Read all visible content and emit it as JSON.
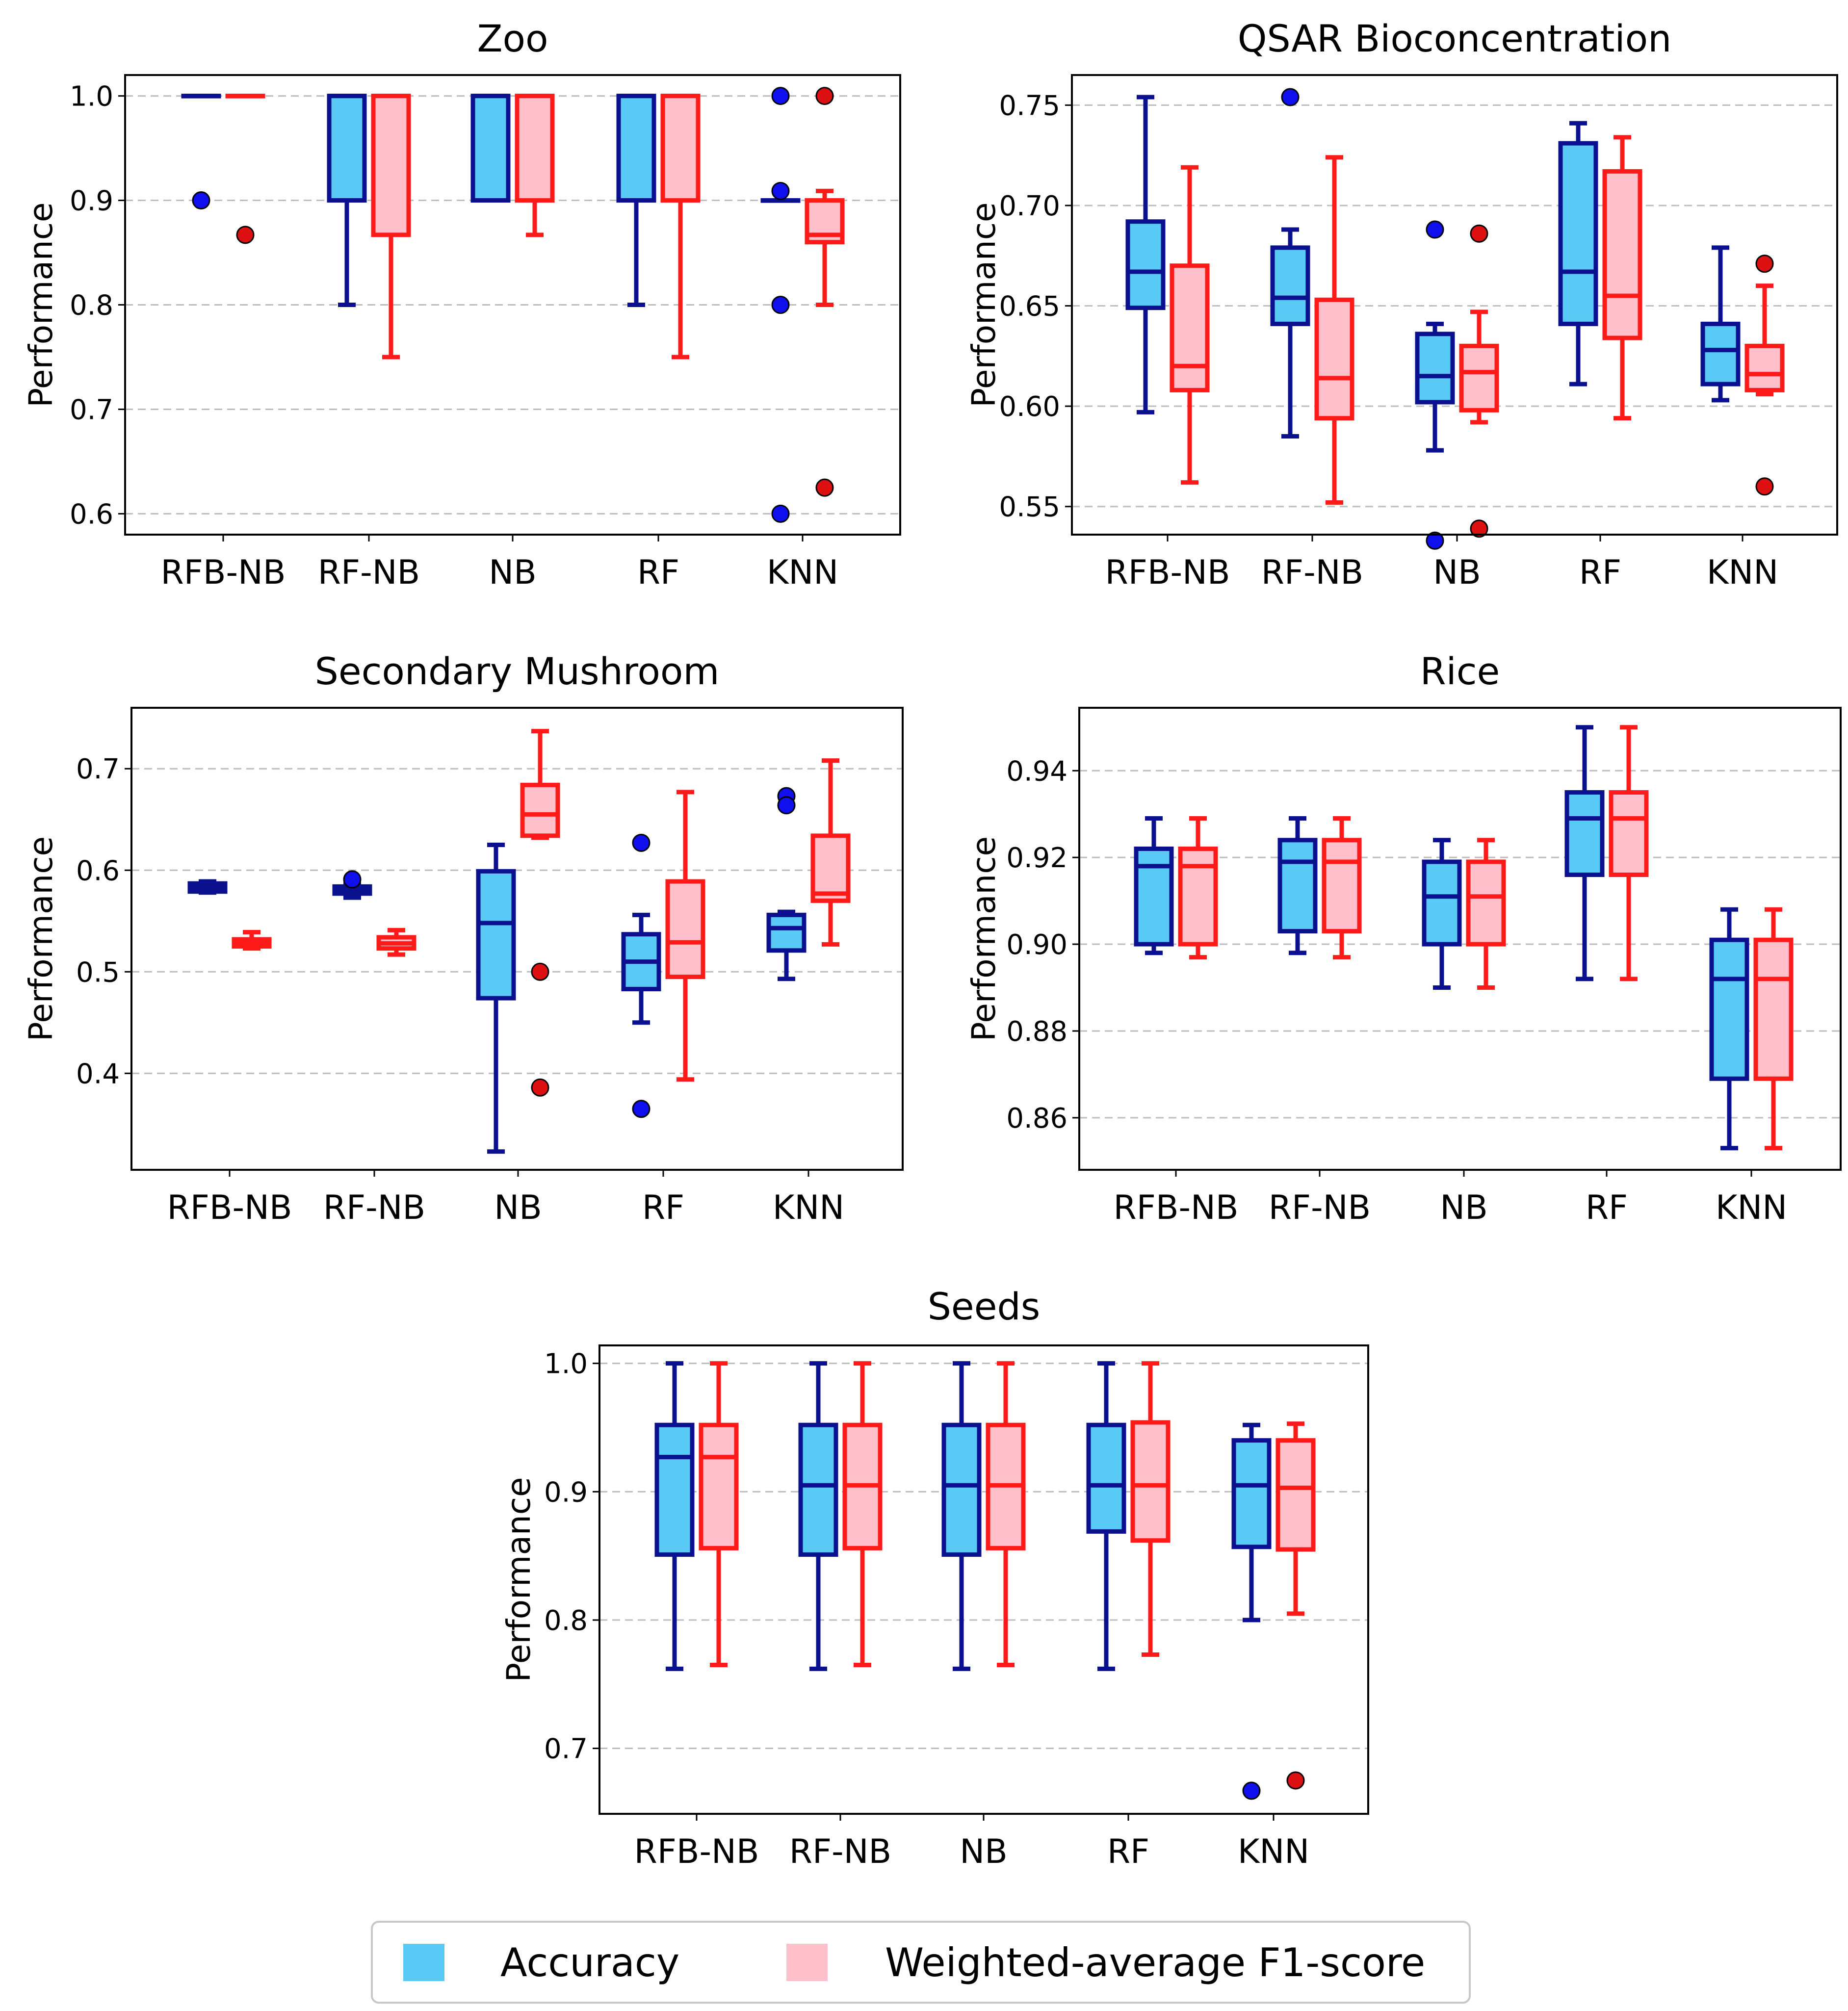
{
  "colors": {
    "acc_fill": "#59C9F5",
    "acc_line": "#0B108F",
    "acc_flier": "#1010EE",
    "f1_fill": "#FFC0CC",
    "f1_line": "#FF1A1A",
    "f1_flier": "#DD1111",
    "grid": "#BDBDBD"
  },
  "legend": {
    "accuracy_label": "Accuracy",
    "f1_label": "Weighted-average F1-score"
  },
  "chart_data": [
    {
      "type": "box",
      "title": "Zoo",
      "ylabel": "Performance",
      "ylim": [
        0.58,
        1.02
      ],
      "yticks": [
        0.6,
        0.7,
        0.8,
        0.9,
        1.0
      ],
      "ytick_labels": [
        "0.6",
        "0.7",
        "0.8",
        "0.9",
        "1.0"
      ],
      "categories": [
        "RFB-NB",
        "RF-NB",
        "NB",
        "RF",
        "KNN"
      ],
      "series": [
        {
          "name": "Accuracy",
          "boxes": [
            {
              "whislo": 1.0,
              "q1": 1.0,
              "med": 1.0,
              "q3": 1.0,
              "whishi": 1.0,
              "fliers": [
                0.9
              ]
            },
            {
              "whislo": 0.8,
              "q1": 0.9,
              "med": 1.0,
              "q3": 1.0,
              "whishi": 1.0,
              "fliers": []
            },
            {
              "whislo": 0.9,
              "q1": 0.9,
              "med": 1.0,
              "q3": 1.0,
              "whishi": 1.0,
              "fliers": []
            },
            {
              "whislo": 0.8,
              "q1": 0.9,
              "med": 1.0,
              "q3": 1.0,
              "whishi": 1.0,
              "fliers": []
            },
            {
              "whislo": 0.9,
              "q1": 0.9,
              "med": 0.9,
              "q3": 0.9,
              "whishi": 0.9,
              "fliers": [
                1.0,
                0.909,
                0.8,
                0.6
              ]
            }
          ]
        },
        {
          "name": "Weighted-average F1-score",
          "boxes": [
            {
              "whislo": 1.0,
              "q1": 1.0,
              "med": 1.0,
              "q3": 1.0,
              "whishi": 1.0,
              "fliers": [
                0.867
              ]
            },
            {
              "whislo": 0.75,
              "q1": 0.867,
              "med": 1.0,
              "q3": 1.0,
              "whishi": 1.0,
              "fliers": []
            },
            {
              "whislo": 0.867,
              "q1": 0.9,
              "med": 1.0,
              "q3": 1.0,
              "whishi": 1.0,
              "fliers": []
            },
            {
              "whislo": 0.75,
              "q1": 0.9,
              "med": 1.0,
              "q3": 1.0,
              "whishi": 1.0,
              "fliers": []
            },
            {
              "whislo": 0.8,
              "q1": 0.86,
              "med": 0.867,
              "q3": 0.9,
              "whishi": 0.909,
              "fliers": [
                1.0,
                0.625
              ]
            }
          ]
        }
      ]
    },
    {
      "type": "box",
      "title": "QSAR Bioconcentration",
      "ylabel": "Performance",
      "ylim": [
        0.536,
        0.765
      ],
      "yticks": [
        0.55,
        0.6,
        0.65,
        0.7,
        0.75
      ],
      "ytick_labels": [
        "0.55",
        "0.60",
        "0.65",
        "0.70",
        "0.75"
      ],
      "categories": [
        "RFB-NB",
        "RF-NB",
        "NB",
        "RF",
        "KNN"
      ],
      "series": [
        {
          "name": "Accuracy",
          "boxes": [
            {
              "whislo": 0.597,
              "q1": 0.649,
              "med": 0.667,
              "q3": 0.692,
              "whishi": 0.754,
              "fliers": []
            },
            {
              "whislo": 0.585,
              "q1": 0.641,
              "med": 0.654,
              "q3": 0.679,
              "whishi": 0.688,
              "fliers": [
                0.754
              ]
            },
            {
              "whislo": 0.578,
              "q1": 0.602,
              "med": 0.615,
              "q3": 0.636,
              "whishi": 0.641,
              "fliers": [
                0.688,
                0.533
              ]
            },
            {
              "whislo": 0.611,
              "q1": 0.641,
              "med": 0.667,
              "q3": 0.731,
              "whishi": 0.741,
              "fliers": []
            },
            {
              "whislo": 0.603,
              "q1": 0.611,
              "med": 0.628,
              "q3": 0.641,
              "whishi": 0.679,
              "fliers": []
            }
          ]
        },
        {
          "name": "Weighted-average F1-score",
          "boxes": [
            {
              "whislo": 0.562,
              "q1": 0.608,
              "med": 0.62,
              "q3": 0.67,
              "whishi": 0.719,
              "fliers": []
            },
            {
              "whislo": 0.552,
              "q1": 0.594,
              "med": 0.614,
              "q3": 0.653,
              "whishi": 0.724,
              "fliers": []
            },
            {
              "whislo": 0.592,
              "q1": 0.598,
              "med": 0.617,
              "q3": 0.63,
              "whishi": 0.647,
              "fliers": [
                0.686,
                0.539
              ]
            },
            {
              "whislo": 0.594,
              "q1": 0.634,
              "med": 0.655,
              "q3": 0.717,
              "whishi": 0.734,
              "fliers": []
            },
            {
              "whislo": 0.606,
              "q1": 0.608,
              "med": 0.616,
              "q3": 0.63,
              "whishi": 0.66,
              "fliers": [
                0.671,
                0.56
              ]
            }
          ]
        }
      ]
    },
    {
      "type": "box",
      "title": "Secondary Mushroom",
      "ylabel": "Performance",
      "ylim": [
        0.305,
        0.76
      ],
      "yticks": [
        0.4,
        0.5,
        0.6,
        0.7
      ],
      "ytick_labels": [
        "0.4",
        "0.5",
        "0.6",
        "0.7"
      ],
      "categories": [
        "RFB-NB",
        "RF-NB",
        "NB",
        "RF",
        "KNN"
      ],
      "series": [
        {
          "name": "Accuracy",
          "boxes": [
            {
              "whislo": 0.578,
              "q1": 0.579,
              "med": 0.583,
              "q3": 0.587,
              "whishi": 0.589,
              "fliers": []
            },
            {
              "whislo": 0.573,
              "q1": 0.577,
              "med": 0.58,
              "q3": 0.584,
              "whishi": 0.586,
              "fliers": [
                0.591
              ]
            },
            {
              "whislo": 0.323,
              "q1": 0.474,
              "med": 0.548,
              "q3": 0.599,
              "whishi": 0.625,
              "fliers": []
            },
            {
              "whislo": 0.45,
              "q1": 0.483,
              "med": 0.51,
              "q3": 0.537,
              "whishi": 0.556,
              "fliers": [
                0.627,
                0.365
              ]
            },
            {
              "whislo": 0.493,
              "q1": 0.521,
              "med": 0.543,
              "q3": 0.556,
              "whishi": 0.559,
              "fliers": [
                0.673,
                0.664
              ]
            }
          ]
        },
        {
          "name": "Weighted-average F1-score",
          "boxes": [
            {
              "whislo": 0.523,
              "q1": 0.525,
              "med": 0.528,
              "q3": 0.532,
              "whishi": 0.539,
              "fliers": []
            },
            {
              "whislo": 0.517,
              "q1": 0.523,
              "med": 0.528,
              "q3": 0.534,
              "whishi": 0.541,
              "fliers": []
            },
            {
              "whislo": 0.632,
              "q1": 0.634,
              "med": 0.655,
              "q3": 0.684,
              "whishi": 0.737,
              "fliers": [
                0.5,
                0.386
              ]
            },
            {
              "whislo": 0.394,
              "q1": 0.495,
              "med": 0.529,
              "q3": 0.589,
              "whishi": 0.677,
              "fliers": []
            },
            {
              "whislo": 0.527,
              "q1": 0.57,
              "med": 0.577,
              "q3": 0.634,
              "whishi": 0.708,
              "fliers": []
            }
          ]
        }
      ]
    },
    {
      "type": "box",
      "title": "Rice",
      "ylabel": "Performance",
      "ylim": [
        0.848,
        0.9545
      ],
      "yticks": [
        0.86,
        0.88,
        0.9,
        0.92,
        0.94
      ],
      "ytick_labels": [
        "0.86",
        "0.88",
        "0.90",
        "0.92",
        "0.94"
      ],
      "categories": [
        "RFB-NB",
        "RF-NB",
        "NB",
        "RF",
        "KNN"
      ],
      "series": [
        {
          "name": "Accuracy",
          "boxes": [
            {
              "whislo": 0.898,
              "q1": 0.9,
              "med": 0.918,
              "q3": 0.922,
              "whishi": 0.929,
              "fliers": []
            },
            {
              "whislo": 0.898,
              "q1": 0.903,
              "med": 0.919,
              "q3": 0.924,
              "whishi": 0.929,
              "fliers": []
            },
            {
              "whislo": 0.89,
              "q1": 0.9,
              "med": 0.911,
              "q3": 0.919,
              "whishi": 0.924,
              "fliers": []
            },
            {
              "whislo": 0.892,
              "q1": 0.916,
              "med": 0.929,
              "q3": 0.935,
              "whishi": 0.95,
              "fliers": []
            },
            {
              "whislo": 0.853,
              "q1": 0.869,
              "med": 0.892,
              "q3": 0.901,
              "whishi": 0.908,
              "fliers": []
            }
          ]
        },
        {
          "name": "Weighted-average F1-score",
          "boxes": [
            {
              "whislo": 0.897,
              "q1": 0.9,
              "med": 0.918,
              "q3": 0.922,
              "whishi": 0.929,
              "fliers": []
            },
            {
              "whislo": 0.897,
              "q1": 0.903,
              "med": 0.919,
              "q3": 0.924,
              "whishi": 0.929,
              "fliers": []
            },
            {
              "whislo": 0.89,
              "q1": 0.9,
              "med": 0.911,
              "q3": 0.919,
              "whishi": 0.924,
              "fliers": []
            },
            {
              "whislo": 0.892,
              "q1": 0.916,
              "med": 0.929,
              "q3": 0.935,
              "whishi": 0.95,
              "fliers": []
            },
            {
              "whislo": 0.853,
              "q1": 0.869,
              "med": 0.892,
              "q3": 0.901,
              "whishi": 0.908,
              "fliers": []
            }
          ]
        }
      ]
    },
    {
      "type": "box",
      "title": "Seeds",
      "ylabel": "Performance",
      "ylim": [
        0.649,
        1.014
      ],
      "yticks": [
        0.7,
        0.8,
        0.9,
        1.0
      ],
      "ytick_labels": [
        "0.7",
        "0.8",
        "0.9",
        "1.0"
      ],
      "categories": [
        "RFB-NB",
        "RF-NB",
        "NB",
        "RF",
        "KNN"
      ],
      "series": [
        {
          "name": "Accuracy",
          "boxes": [
            {
              "whislo": 0.762,
              "q1": 0.851,
              "med": 0.927,
              "q3": 0.952,
              "whishi": 1.0,
              "fliers": []
            },
            {
              "whislo": 0.762,
              "q1": 0.851,
              "med": 0.905,
              "q3": 0.952,
              "whishi": 1.0,
              "fliers": []
            },
            {
              "whislo": 0.762,
              "q1": 0.851,
              "med": 0.905,
              "q3": 0.952,
              "whishi": 1.0,
              "fliers": []
            },
            {
              "whislo": 0.762,
              "q1": 0.869,
              "med": 0.905,
              "q3": 0.952,
              "whishi": 1.0,
              "fliers": []
            },
            {
              "whislo": 0.8,
              "q1": 0.857,
              "med": 0.905,
              "q3": 0.94,
              "whishi": 0.952,
              "fliers": [
                0.667
              ]
            }
          ]
        },
        {
          "name": "Weighted-average F1-score",
          "boxes": [
            {
              "whislo": 0.765,
              "q1": 0.856,
              "med": 0.927,
              "q3": 0.952,
              "whishi": 1.0,
              "fliers": []
            },
            {
              "whislo": 0.765,
              "q1": 0.856,
              "med": 0.905,
              "q3": 0.952,
              "whishi": 1.0,
              "fliers": []
            },
            {
              "whislo": 0.765,
              "q1": 0.856,
              "med": 0.905,
              "q3": 0.952,
              "whishi": 1.0,
              "fliers": []
            },
            {
              "whislo": 0.773,
              "q1": 0.862,
              "med": 0.905,
              "q3": 0.954,
              "whishi": 1.0,
              "fliers": []
            },
            {
              "whislo": 0.805,
              "q1": 0.855,
              "med": 0.903,
              "q3": 0.94,
              "whishi": 0.953,
              "fliers": [
                0.675
              ]
            }
          ]
        }
      ]
    }
  ]
}
